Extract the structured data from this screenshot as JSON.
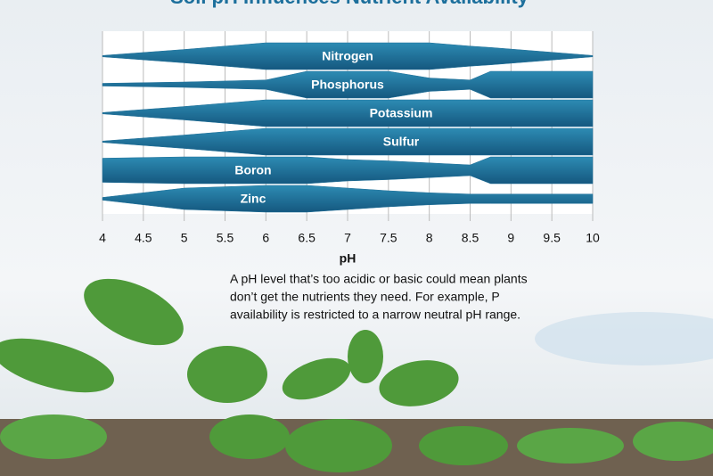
{
  "chart_data": {
    "type": "band",
    "title": "Soil pH Influences Nutrient Availability",
    "x_label": "pH",
    "x": [
      4,
      5,
      6,
      6.5,
      7,
      7.5,
      8,
      8.5,
      8.75,
      10
    ],
    "xlim": [
      4,
      10
    ],
    "xticks": [
      4,
      4.5,
      5,
      5.5,
      6,
      6.5,
      7,
      7.5,
      8,
      8.5,
      9,
      9.5,
      10
    ],
    "grid": true,
    "series": [
      {
        "name": "Nitrogen",
        "color": "#1f6f98",
        "values": [
          0.05,
          0.5,
          1,
          1,
          1,
          1,
          1,
          0.75,
          0.65,
          0.05
        ]
      },
      {
        "name": "Phosphorus",
        "color": "#1f6f98",
        "values": [
          0.1,
          0.2,
          0.35,
          1,
          1,
          1,
          0.5,
          0.35,
          1,
          1
        ]
      },
      {
        "name": "Potassium",
        "color": "#1f6f98",
        "values": [
          0.05,
          0.5,
          1,
          1,
          1,
          1,
          1,
          1,
          1,
          1
        ]
      },
      {
        "name": "Sulfur",
        "color": "#1f6f98",
        "values": [
          0.05,
          0.5,
          1,
          1,
          1,
          1,
          1,
          1,
          1,
          1
        ]
      },
      {
        "name": "Boron",
        "color": "#1f6f98",
        "values": [
          0.9,
          1,
          1,
          1,
          0.8,
          0.7,
          0.55,
          0.4,
          1,
          1
        ]
      },
      {
        "name": "Zinc",
        "color": "#1f6f98",
        "values": [
          0.1,
          0.8,
          1,
          1,
          0.8,
          0.6,
          0.45,
          0.35,
          0.35,
          0.35
        ]
      }
    ],
    "annotations": [
      "A pH level that’s too acidic or basic could mean plants",
      "don’t get the nutrients they need. For example, P",
      "availability is restricted to a narrow neutral pH range."
    ]
  }
}
